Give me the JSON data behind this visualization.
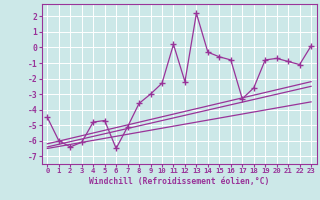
{
  "xlabel": "Windchill (Refroidissement éolien,°C)",
  "background_color": "#cce8e8",
  "grid_color": "#ffffff",
  "line_color": "#993399",
  "x_data": [
    0,
    1,
    2,
    3,
    4,
    5,
    6,
    7,
    8,
    9,
    10,
    11,
    12,
    13,
    14,
    15,
    16,
    17,
    18,
    19,
    20,
    21,
    22,
    23
  ],
  "y_data": [
    -4.5,
    -6.0,
    -6.4,
    -6.1,
    -4.8,
    -4.7,
    -6.5,
    -5.1,
    -3.6,
    -3.0,
    -2.3,
    0.2,
    -2.2,
    2.2,
    -0.3,
    -0.6,
    -0.8,
    -3.3,
    -2.6,
    -0.8,
    -0.7,
    -0.9,
    -1.1,
    0.1
  ],
  "trend1_x": [
    0,
    23
  ],
  "trend1_y": [
    -6.2,
    -2.2
  ],
  "trend2_x": [
    0,
    23
  ],
  "trend2_y": [
    -6.4,
    -2.5
  ],
  "trend3_x": [
    0,
    23
  ],
  "trend3_y": [
    -6.5,
    -3.5
  ],
  "xlim": [
    -0.5,
    23.5
  ],
  "ylim": [
    -7.5,
    2.8
  ],
  "yticks": [
    2,
    1,
    0,
    -1,
    -2,
    -3,
    -4,
    -5,
    -6,
    -7
  ],
  "xticks": [
    0,
    1,
    2,
    3,
    4,
    5,
    6,
    7,
    8,
    9,
    10,
    11,
    12,
    13,
    14,
    15,
    16,
    17,
    18,
    19,
    20,
    21,
    22,
    23
  ]
}
